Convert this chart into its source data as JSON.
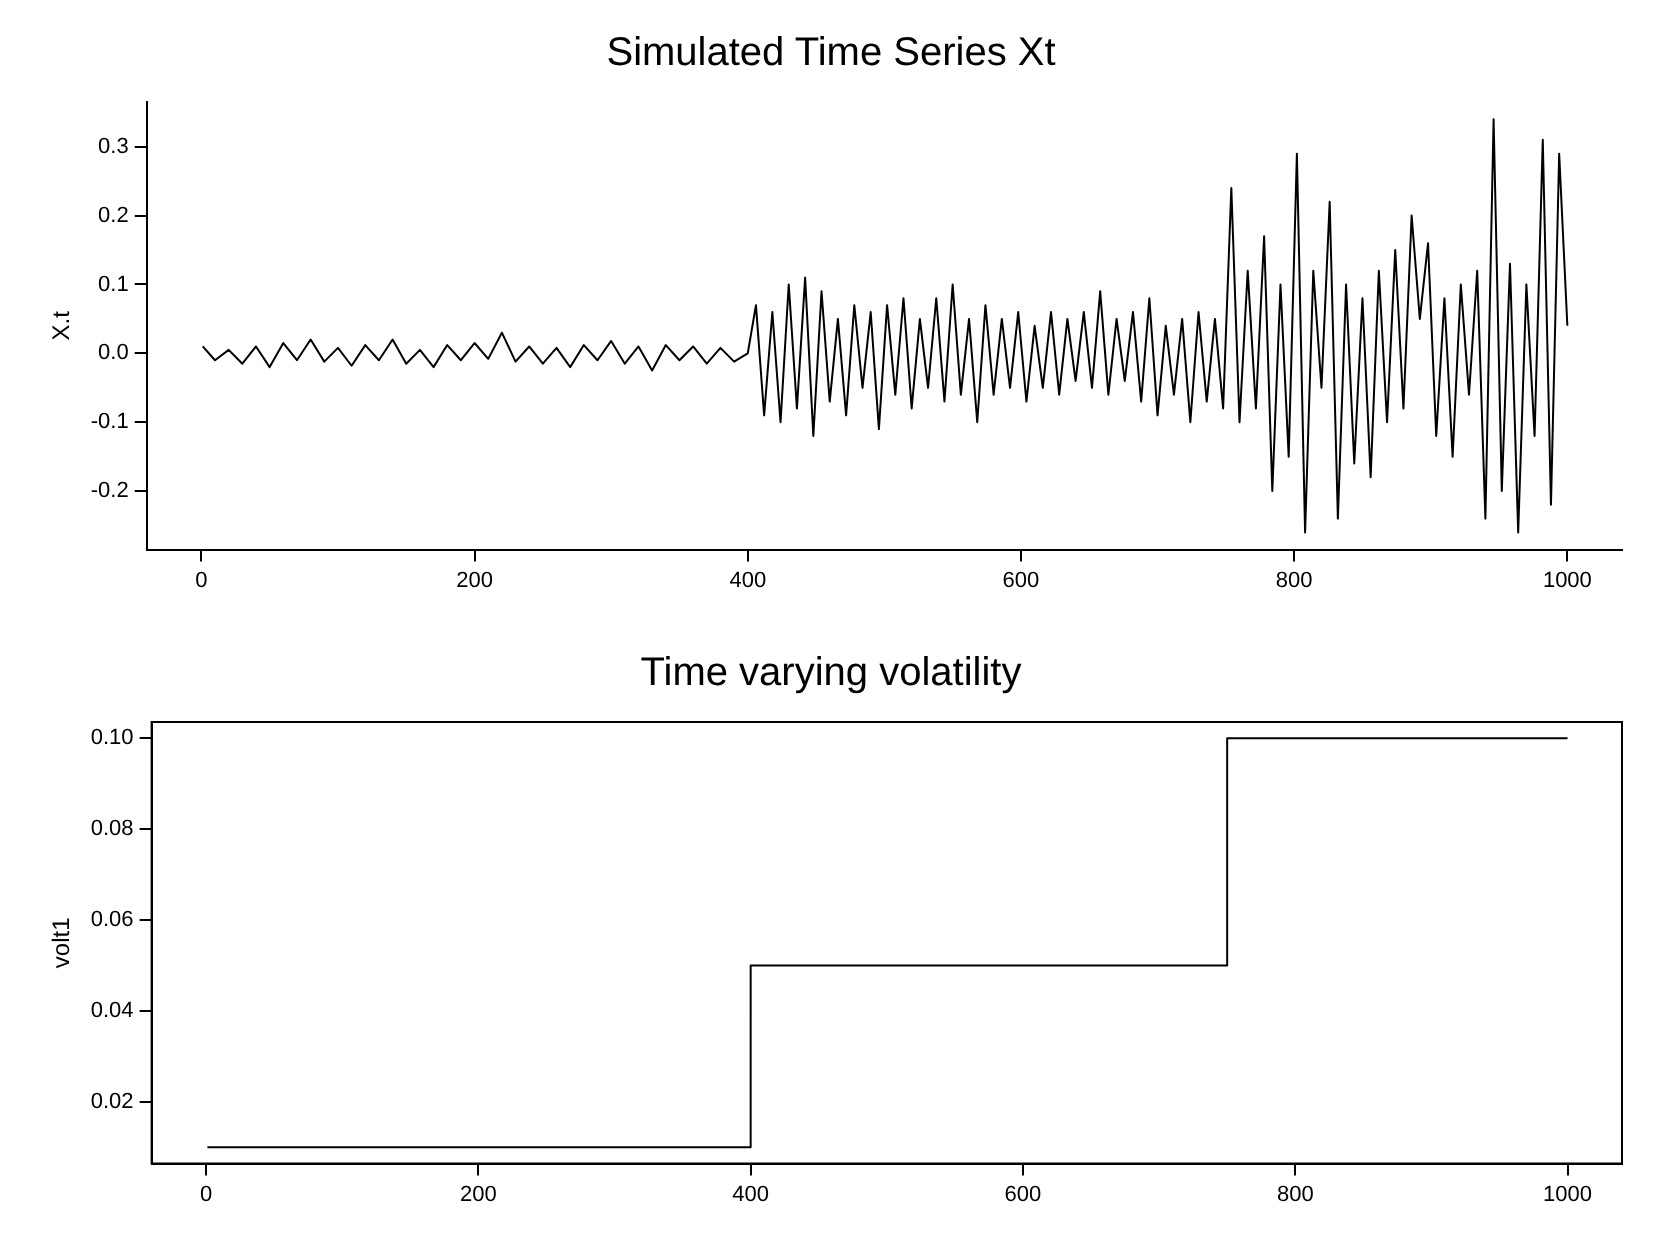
{
  "chart_data": [
    {
      "type": "line",
      "title": "Simulated Time Series Xt",
      "ylabel": "X.t",
      "x": [
        1,
        10,
        20,
        30,
        40,
        50,
        60,
        70,
        80,
        90,
        100,
        110,
        120,
        130,
        140,
        150,
        160,
        170,
        180,
        190,
        200,
        210,
        220,
        230,
        240,
        250,
        260,
        270,
        280,
        290,
        300,
        310,
        320,
        330,
        340,
        350,
        360,
        370,
        380,
        390,
        400,
        406,
        412,
        418,
        424,
        430,
        436,
        442,
        448,
        454,
        460,
        466,
        472,
        478,
        484,
        490,
        496,
        502,
        508,
        514,
        520,
        526,
        532,
        538,
        544,
        550,
        556,
        562,
        568,
        574,
        580,
        586,
        592,
        598,
        604,
        610,
        616,
        622,
        628,
        634,
        640,
        646,
        652,
        658,
        664,
        670,
        676,
        682,
        688,
        694,
        700,
        706,
        712,
        718,
        724,
        730,
        736,
        742,
        748,
        754,
        760,
        766,
        772,
        778,
        784,
        790,
        796,
        802,
        808,
        814,
        820,
        826,
        832,
        838,
        844,
        850,
        856,
        862,
        868,
        874,
        880,
        886,
        892,
        898,
        904,
        910,
        916,
        922,
        928,
        934,
        940,
        946,
        952,
        958,
        964,
        970,
        976,
        982,
        988,
        994,
        1000
      ],
      "series": [
        {
          "color": "#000000",
          "values": [
            0.01,
            -0.01,
            0.005,
            -0.015,
            0.01,
            -0.02,
            0.015,
            -0.01,
            0.02,
            -0.012,
            0.008,
            -0.018,
            0.012,
            -0.01,
            0.02,
            -0.015,
            0.005,
            -0.02,
            0.012,
            -0.01,
            0.015,
            -0.008,
            0.03,
            -0.012,
            0.01,
            -0.015,
            0.008,
            -0.02,
            0.012,
            -0.01,
            0.018,
            -0.015,
            0.01,
            -0.025,
            0.012,
            -0.01,
            0.01,
            -0.015,
            0.008,
            -0.012,
            0.0,
            0.07,
            -0.09,
            0.06,
            -0.1,
            0.1,
            -0.08,
            0.11,
            -0.12,
            0.09,
            -0.07,
            0.05,
            -0.09,
            0.07,
            -0.05,
            0.06,
            -0.11,
            0.07,
            -0.06,
            0.08,
            -0.08,
            0.05,
            -0.05,
            0.08,
            -0.07,
            0.1,
            -0.06,
            0.05,
            -0.1,
            0.07,
            -0.06,
            0.05,
            -0.05,
            0.06,
            -0.07,
            0.04,
            -0.05,
            0.06,
            -0.06,
            0.05,
            -0.04,
            0.06,
            -0.05,
            0.09,
            -0.06,
            0.05,
            -0.04,
            0.06,
            -0.07,
            0.08,
            -0.09,
            0.04,
            -0.06,
            0.05,
            -0.1,
            0.06,
            -0.07,
            0.05,
            -0.08,
            0.24,
            -0.1,
            0.12,
            -0.08,
            0.17,
            -0.2,
            0.1,
            -0.15,
            0.29,
            -0.26,
            0.12,
            -0.05,
            0.22,
            -0.24,
            0.1,
            -0.16,
            0.08,
            -0.18,
            0.12,
            -0.1,
            0.15,
            -0.08,
            0.2,
            0.05,
            0.16,
            -0.12,
            0.08,
            -0.15,
            0.1,
            -0.06,
            0.12,
            -0.24,
            0.34,
            -0.2,
            0.13,
            -0.26,
            0.1,
            -0.12,
            0.31,
            -0.22,
            0.29,
            0.04
          ]
        }
      ],
      "xlim": [
        -40,
        1040
      ],
      "xticks": [
        0,
        200,
        400,
        600,
        800,
        1000
      ],
      "ylim": [
        -0.285,
        0.365
      ],
      "yticks": [
        -0.2,
        -0.1,
        {
          "value": 0,
          "label": "0.0"
        },
        0.1,
        0.2,
        0.3
      ],
      "grid": false,
      "legend": false
    },
    {
      "type": "step",
      "title": "Time varying volatility",
      "ylabel": "volt1",
      "x": [
        1,
        400,
        750,
        1000
      ],
      "series": [
        {
          "color": "#000000",
          "values": [
            0.01,
            0.05,
            0.1,
            0.1
          ]
        }
      ],
      "xlim": [
        -40,
        1040
      ],
      "xticks": [
        0,
        200,
        400,
        600,
        800,
        1000
      ],
      "ylim": [
        0.0064,
        0.1036
      ],
      "yticks": [
        0.02,
        0.04,
        0.06,
        0.08,
        {
          "value": 0.1,
          "label": "0.10"
        }
      ],
      "grid": false,
      "legend": false
    }
  ]
}
